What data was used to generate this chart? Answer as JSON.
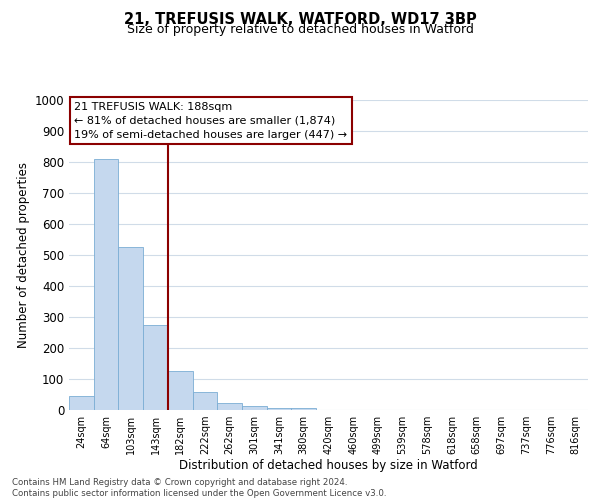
{
  "title": "21, TREFUSIS WALK, WATFORD, WD17 3BP",
  "subtitle": "Size of property relative to detached houses in Watford",
  "xlabel": "Distribution of detached houses by size in Watford",
  "ylabel": "Number of detached properties",
  "bar_labels": [
    "24sqm",
    "64sqm",
    "103sqm",
    "143sqm",
    "182sqm",
    "222sqm",
    "262sqm",
    "301sqm",
    "341sqm",
    "380sqm",
    "420sqm",
    "460sqm",
    "499sqm",
    "539sqm",
    "578sqm",
    "618sqm",
    "658sqm",
    "697sqm",
    "737sqm",
    "776sqm",
    "816sqm"
  ],
  "hist_values": [
    46,
    810,
    525,
    275,
    125,
    58,
    22,
    12,
    7,
    5,
    0,
    0,
    0,
    0,
    0,
    0,
    0,
    0,
    0,
    0,
    0
  ],
  "bar_color": "#c5d8ee",
  "bar_edge_color": "#7badd4",
  "vline_color": "#8b0000",
  "vline_x_index": 3.5,
  "annotation_title": "21 TREFUSIS WALK: 188sqm",
  "annotation_line1": "← 81% of detached houses are smaller (1,874)",
  "annotation_line2": "19% of semi-detached houses are larger (447) →",
  "annotation_box_color": "#ffffff",
  "annotation_box_edge": "#8b0000",
  "ylim": [
    0,
    1000
  ],
  "yticks": [
    0,
    100,
    200,
    300,
    400,
    500,
    600,
    700,
    800,
    900,
    1000
  ],
  "footer_line1": "Contains HM Land Registry data © Crown copyright and database right 2024.",
  "footer_line2": "Contains public sector information licensed under the Open Government Licence v3.0.",
  "background_color": "#ffffff",
  "grid_color": "#d0dce8"
}
